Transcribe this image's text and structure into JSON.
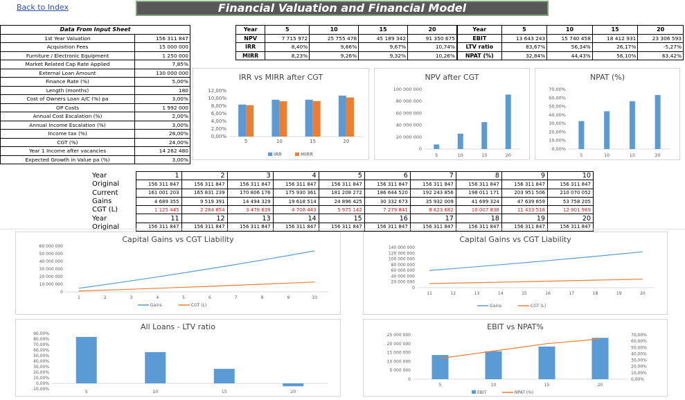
{
  "nav": {
    "back_label": "Back to Index"
  },
  "title": "Financial Valuation and Financial Model",
  "input_sheet": {
    "header": "Data From Input Sheet",
    "rows": [
      {
        "label": "1st Year Valuation",
        "value": "156 311 847"
      },
      {
        "label": "Acquisition Fees",
        "value": "15 000 000"
      },
      {
        "label": "Furniture / Electronic Equipment",
        "value": "1 250 000"
      },
      {
        "label": "Market Related Cap Rate Applied",
        "value": "7,85%"
      },
      {
        "label": "External Loan Amount",
        "value": "130 000 000"
      },
      {
        "label": "Finance Rate (%)",
        "value": "5,00%"
      },
      {
        "label": "Length (months)",
        "value": "180"
      },
      {
        "label": "Cost of Owners Loan A/C (%) pa",
        "value": "3,00%"
      },
      {
        "label": "OP Costs",
        "value": "1 992 000"
      },
      {
        "label": "Annual Cost Escalation (%)",
        "value": "2,00%"
      },
      {
        "label": "Annual Income Escalation (%)",
        "value": "3,00%"
      },
      {
        "label": "Income tax (%)",
        "value": "28,00%"
      },
      {
        "label": "CGT (%)",
        "value": "24,00%"
      },
      {
        "label": "Year 1 Income after vacancies",
        "value": "14 262 480"
      },
      {
        "label": "Expected Growth in Value pa (%)",
        "value": "3,00%"
      }
    ]
  },
  "stats_left": {
    "header": [
      "Year",
      "5",
      "10",
      "15",
      "20"
    ],
    "rows": [
      [
        "NPV",
        "7 715 972",
        "25 755 478",
        "45 189 342",
        "91 350 675"
      ],
      [
        "IRR",
        "8,40%",
        "9,66%",
        "9,67%",
        "10,74%"
      ],
      [
        "MIRR",
        "8,23%",
        "9,26%",
        "9,32%",
        "10,26%"
      ]
    ]
  },
  "stats_right": {
    "header": [
      "Year",
      "5",
      "10",
      "15",
      "20"
    ],
    "rows": [
      [
        "EBIT",
        "13 643 243",
        "15 740 458",
        "18 412 931",
        "23 306 593"
      ],
      [
        "LTV ratio",
        "83,67%",
        "56,34%",
        "26,17%",
        "-5,27%"
      ],
      [
        "NPAT (%)",
        "32,84%",
        "44,43%",
        "56,10%",
        "63,42%"
      ]
    ]
  },
  "yearly_grid": {
    "row_labels": [
      "Year",
      "Original",
      "Current",
      "Gains",
      "CGT (L)",
      "Year",
      "Original"
    ],
    "years_a": [
      "1",
      "2",
      "3",
      "4",
      "5",
      "6",
      "7",
      "8",
      "9",
      "10"
    ],
    "original_a": [
      "156 311 847",
      "156 311 847",
      "156 311 847",
      "156 311 847",
      "156 311 847",
      "156 311 847",
      "156 311 847",
      "156 311 847",
      "156 311 847",
      "156 311 847"
    ],
    "current_a": [
      "161 001 203",
      "165 831 239",
      "170 806 176",
      "175 930 361",
      "181 208 272",
      "186 644 520",
      "192 243 856",
      "198 011 171",
      "203 951 506",
      "210 070 052"
    ],
    "gains_a": [
      "4 689 355",
      "9 519 391",
      "14 494 329",
      "19 618 514",
      "24 896 425",
      "30 332 673",
      "35 932 009",
      "41 699 324",
      "47 639 659",
      "53 758 205"
    ],
    "cgt_a": [
      "1 125 445",
      "2 284 654",
      "3 478 639",
      "4 708 443",
      "5 975 142",
      "7 279 841",
      "8 623 682",
      "10 007 838",
      "11 433 518",
      "12 901 969"
    ],
    "years_b": [
      "11",
      "12",
      "13",
      "14",
      "15",
      "16",
      "17",
      "18",
      "19",
      "20"
    ],
    "original_b": [
      "156 311 847",
      "156 311 847",
      "156 311 847",
      "156 311 847",
      "156 311 847",
      "156 311 847",
      "156 311 847",
      "156 311 847",
      "156 311 847",
      "156 311 847"
    ]
  },
  "chart_data": [
    {
      "id": "irr_mirr",
      "type": "bar",
      "title": "IRR vs MIRR after CGT",
      "categories": [
        "5",
        "10",
        "15",
        "20"
      ],
      "series": [
        {
          "name": "IRR",
          "values": [
            8.4,
            9.66,
            9.67,
            10.74
          ],
          "color": "#5b9bd5"
        },
        {
          "name": "MIRR",
          "values": [
            8.23,
            9.26,
            9.32,
            10.26
          ],
          "color": "#ed7d31"
        }
      ],
      "ylim": [
        0,
        12
      ],
      "yticks": [
        "0,00%",
        "2,00%",
        "4,00%",
        "6,00%",
        "8,00%",
        "10,00%",
        "12,00%"
      ],
      "legend": "bottom"
    },
    {
      "id": "npv",
      "type": "bar",
      "title": "NPV after CGT",
      "categories": [
        "5",
        "10",
        "15",
        "20"
      ],
      "x_positions": [
        5,
        10,
        15,
        20
      ],
      "series": [
        {
          "values": [
            7715972,
            25755478,
            45189342,
            91350675
          ],
          "color": "#5b9bd5"
        }
      ],
      "ylim": [
        0,
        100000000
      ],
      "yticks": [
        "0",
        "20 000 000",
        "40 000 000",
        "60 000 000",
        "80 000 000",
        "100 000 000"
      ]
    },
    {
      "id": "npat",
      "type": "bar",
      "title": "NPAT (%)",
      "categories": [
        "5",
        "10",
        "15",
        "20"
      ],
      "series": [
        {
          "values": [
            32.84,
            44.43,
            56.1,
            63.42
          ],
          "color": "#5b9bd5"
        }
      ],
      "ylim": [
        0,
        70
      ],
      "yticks": [
        "0,00%",
        "10,00%",
        "20,00%",
        "30,00%",
        "40,00%",
        "50,00%",
        "60,00%",
        "70,00%"
      ]
    },
    {
      "id": "cg_1",
      "type": "line",
      "title": "Capital Gains vs CGT Liability",
      "categories": [
        "1",
        "2",
        "3",
        "4",
        "5",
        "6",
        "7",
        "8",
        "9",
        "10"
      ],
      "series": [
        {
          "name": "Gains",
          "values": [
            4689355,
            9519391,
            14494329,
            19618514,
            24896425,
            30332673,
            35932009,
            41699324,
            47639659,
            53758205
          ],
          "color": "#5b9bd5"
        },
        {
          "name": "CGT (L)",
          "values": [
            1125445,
            2284654,
            3478639,
            4708443,
            5975142,
            7279841,
            8623682,
            10007838,
            11433518,
            12901969
          ],
          "color": "#ed7d31"
        }
      ],
      "ylim": [
        0,
        60000000
      ],
      "yticks": [
        "0",
        "10 000 000",
        "20 000 000",
        "30 000 000",
        "40 000 000",
        "50 000 000",
        "60 000 000"
      ],
      "legend": "bottom"
    },
    {
      "id": "cg_2",
      "type": "line",
      "title": "Capital Gains vs CGT Liability",
      "categories": [
        "11",
        "12",
        "13",
        "14",
        "15",
        "16",
        "17",
        "18",
        "19",
        "20"
      ],
      "series": [
        {
          "name": "Gains",
          "values": [
            60000000,
            66500000,
            73200000,
            80100000,
            87100000,
            94300000,
            101700000,
            109300000,
            117100000,
            125000000
          ],
          "color": "#5b9bd5"
        },
        {
          "name": "CGT (L)",
          "values": [
            14400000,
            15950000,
            17550000,
            19200000,
            20900000,
            22650000,
            24400000,
            26250000,
            28100000,
            30000000
          ],
          "color": "#ed7d31"
        }
      ],
      "ylim": [
        0,
        140000000
      ],
      "yticks": [
        "0",
        "20 000 000",
        "40 000 000",
        "60 000 000",
        "80 000 000",
        "100 000 000",
        "120 000 000",
        "140 000 000"
      ],
      "legend": "bottom"
    },
    {
      "id": "ltv",
      "type": "bar",
      "title": "All Loans - LTV ratio",
      "categories": [
        "5",
        "10",
        "15",
        "20"
      ],
      "series": [
        {
          "values": [
            83.67,
            56.34,
            26.17,
            -5.27
          ],
          "color": "#5b9bd5"
        }
      ],
      "ylim": [
        -10,
        90
      ],
      "yticks": [
        "-10,00%",
        "0,00%",
        "10,00%",
        "20,00%",
        "30,00%",
        "40,00%",
        "50,00%",
        "60,00%",
        "70,00%",
        "80,00%",
        "90,00%"
      ]
    },
    {
      "id": "ebit",
      "type": "bar",
      "title": "EBIT vs NPAT%",
      "categories": [
        "5",
        "10",
        "15",
        "20"
      ],
      "series": [
        {
          "name": "EBIT",
          "values": [
            13643243,
            15740458,
            18412931,
            23306593
          ],
          "color": "#5b9bd5"
        },
        {
          "name": "NPAT (%)",
          "values": [
            32.84,
            44.43,
            56.1,
            63.42
          ],
          "color": "#ed7d31",
          "axis": "right"
        }
      ],
      "ylim": [
        0,
        25000000
      ],
      "yticks": [
        "0",
        "5 000 000",
        "10 000 000",
        "15 000 000",
        "20 000 000",
        "25 000 000"
      ],
      "y2lim": [
        0,
        70
      ],
      "y2ticks": [
        "0,00%",
        "10,00%",
        "20,00%",
        "30,00%",
        "40,00%",
        "50,00%",
        "60,00%",
        "70,00%"
      ],
      "legend": "bottom"
    }
  ]
}
